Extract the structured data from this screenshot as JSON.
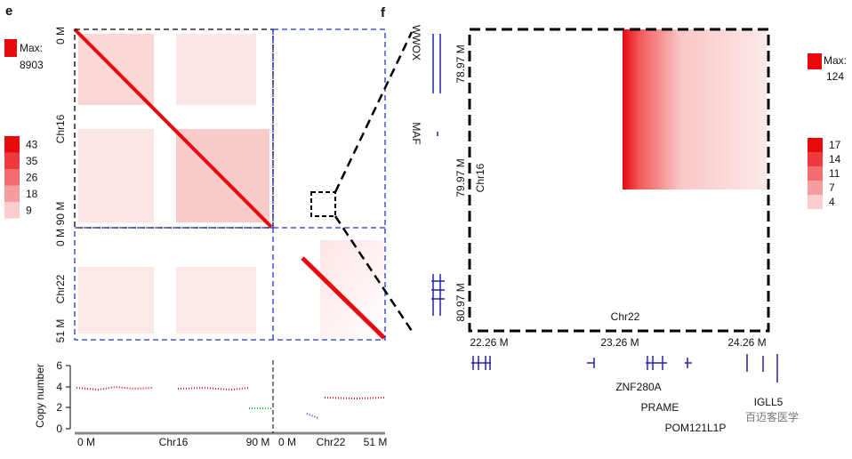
{
  "panel_e": {
    "label": "e",
    "max_label": "Max:",
    "max_value": 8903,
    "scale": [
      43,
      35,
      26,
      18,
      9
    ],
    "y_labels": [
      "0 M",
      "Chr16",
      "90 M",
      "0 M",
      "Chr22",
      "51 M"
    ],
    "copy_number": {
      "y_label": "Copy number",
      "yticks": [
        6,
        4,
        2,
        0
      ],
      "x_labels": [
        "0 M",
        "Chr16",
        "90 M",
        "0 M",
        "Chr22",
        "51 M"
      ]
    }
  },
  "panel_f": {
    "label": "f",
    "max_label": "Max:",
    "max_value": 124,
    "scale": [
      17,
      14,
      11,
      7,
      4
    ],
    "y_labels": [
      "78.97 M",
      "79.97 M",
      "80.97 M"
    ],
    "y_chrom": "Chr16",
    "x_chrom": "Chr22",
    "x_labels": [
      "22.26 M",
      "23.26 M",
      "24.26 M"
    ],
    "genes_left": [
      "WWOX",
      "MAF"
    ],
    "genes_bottom": [
      "ZNF280A",
      "PRAME",
      "POM121L1P",
      "IGLL5"
    ]
  },
  "watermark": "百迈客医学"
}
